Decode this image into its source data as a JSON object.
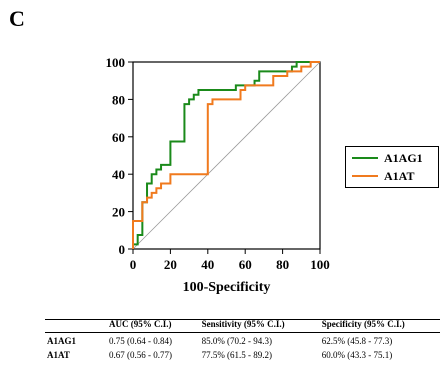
{
  "panel_label": "C",
  "chart_data": {
    "type": "line",
    "title": "",
    "xlabel": "100-Specificity",
    "ylabel": "",
    "xlim": [
      0,
      100
    ],
    "ylim": [
      0,
      100
    ],
    "x_ticks": [
      0,
      20,
      40,
      60,
      80,
      100
    ],
    "y_ticks": [
      0,
      20,
      40,
      60,
      80,
      100
    ],
    "grid": false,
    "legend_position": "right",
    "reference_line": [
      [
        0,
        0
      ],
      [
        100,
        100
      ]
    ],
    "series": [
      {
        "name": "A1AG1",
        "color": "#1a8a1a",
        "points": [
          [
            0,
            0
          ],
          [
            0,
            2.5
          ],
          [
            2.5,
            2.5
          ],
          [
            2.5,
            7.5
          ],
          [
            5,
            7.5
          ],
          [
            5,
            15
          ],
          [
            5,
            25
          ],
          [
            7.5,
            25
          ],
          [
            7.5,
            35
          ],
          [
            10,
            35
          ],
          [
            10,
            40
          ],
          [
            12.5,
            40
          ],
          [
            12.5,
            42.5
          ],
          [
            15,
            42.5
          ],
          [
            15,
            45
          ],
          [
            20,
            45
          ],
          [
            20,
            57.5
          ],
          [
            27.5,
            57.5
          ],
          [
            27.5,
            77.5
          ],
          [
            30,
            77.5
          ],
          [
            30,
            80
          ],
          [
            32.5,
            80
          ],
          [
            32.5,
            82.5
          ],
          [
            35,
            82.5
          ],
          [
            35,
            85
          ],
          [
            55,
            85
          ],
          [
            55,
            87.5
          ],
          [
            65,
            87.5
          ],
          [
            65,
            90
          ],
          [
            67.5,
            90
          ],
          [
            67.5,
            95
          ],
          [
            85,
            95
          ],
          [
            85,
            97.5
          ],
          [
            87.5,
            97.5
          ],
          [
            87.5,
            100
          ],
          [
            100,
            100
          ]
        ]
      },
      {
        "name": "A1AT",
        "color": "#f07a1e",
        "points": [
          [
            0,
            0
          ],
          [
            0,
            15
          ],
          [
            5,
            15
          ],
          [
            5,
            25
          ],
          [
            7.5,
            25
          ],
          [
            7.5,
            27.5
          ],
          [
            10,
            27.5
          ],
          [
            10,
            30
          ],
          [
            12.5,
            30
          ],
          [
            12.5,
            32.5
          ],
          [
            15,
            32.5
          ],
          [
            15,
            35
          ],
          [
            20,
            35
          ],
          [
            20,
            40
          ],
          [
            40,
            40
          ],
          [
            40,
            77.5
          ],
          [
            42.5,
            77.5
          ],
          [
            42.5,
            80
          ],
          [
            57.5,
            80
          ],
          [
            57.5,
            85
          ],
          [
            60,
            85
          ],
          [
            60,
            87.5
          ],
          [
            75,
            87.5
          ],
          [
            75,
            92.5
          ],
          [
            82.5,
            92.5
          ],
          [
            82.5,
            95
          ],
          [
            90,
            95
          ],
          [
            90,
            97.5
          ],
          [
            95,
            97.5
          ],
          [
            95,
            100
          ],
          [
            100,
            100
          ]
        ]
      }
    ]
  },
  "table": {
    "headers": [
      "",
      "AUC (95% C.I.)",
      "Sensitivity (95% C.I.)",
      "Specificity (95% C.I.)"
    ],
    "rows": [
      [
        "A1AG1",
        "0.75 (0.64 - 0.84)",
        "85.0% (70.2 - 94.3)",
        "62.5% (45.8 - 77.3)"
      ],
      [
        "A1AT",
        "0.67 (0.56 - 0.77)",
        "77.5% (61.5 - 89.2)",
        "60.0% (43.3 - 75.1)"
      ]
    ]
  }
}
